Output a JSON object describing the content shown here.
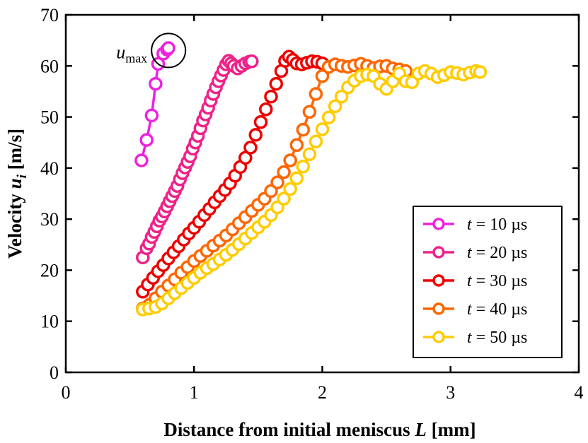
{
  "chart_data": {
    "type": "line",
    "xlabel_prefix": "Distance from initial meniscus ",
    "xlabel_var": "L",
    "xlabel_suffix": " [mm]",
    "ylabel_prefix": "Velocity ",
    "ylabel_var": "u",
    "ylabel_sub": "i",
    "ylabel_suffix": " [m/s]",
    "xlim": [
      0,
      4
    ],
    "ylim": [
      0,
      70
    ],
    "x_ticks": [
      0,
      1,
      2,
      3,
      4
    ],
    "y_ticks": [
      0,
      10,
      20,
      30,
      40,
      50,
      60,
      70
    ],
    "x_tick_labels": [
      "0",
      "1",
      "2",
      "3",
      "4"
    ],
    "y_tick_labels": [
      "0",
      "10",
      "20",
      "30",
      "40",
      "50",
      "60",
      "70"
    ],
    "legend_position": "bottom-right",
    "annotation": {
      "base": "u",
      "sub": "max",
      "x": 0.79,
      "y": 63.3
    },
    "series": [
      {
        "name_var": "t",
        "name_rest": " = 10 µs",
        "color": "#ee22dd",
        "x": [
          0.59,
          0.63,
          0.67,
          0.7,
          0.72,
          0.76,
          0.79,
          0.8
        ],
        "y": [
          41.5,
          45.5,
          50.3,
          56.5,
          60.4,
          62.4,
          63.2,
          63.5
        ]
      },
      {
        "name_var": "t",
        "name_rest": " = 20 µs",
        "color": "#ee2288",
        "x": [
          0.6,
          0.63,
          0.65,
          0.67,
          0.69,
          0.71,
          0.73,
          0.75,
          0.77,
          0.79,
          0.81,
          0.83,
          0.85,
          0.87,
          0.89,
          0.91,
          0.93,
          0.95,
          0.97,
          0.99,
          1.01,
          1.03,
          1.05,
          1.07,
          1.09,
          1.11,
          1.13,
          1.15,
          1.17,
          1.19,
          1.21,
          1.23,
          1.25,
          1.27,
          1.29,
          1.31,
          1.34,
          1.37,
          1.4,
          1.43,
          1.45
        ],
        "y": [
          22.5,
          24.3,
          25.2,
          26.5,
          27.5,
          28.6,
          29.7,
          30.5,
          31.5,
          32.5,
          33.5,
          34.5,
          35.5,
          36.5,
          37.8,
          39.0,
          40.1,
          41.2,
          42.3,
          43.8,
          45.0,
          46.3,
          47.8,
          49.3,
          50.5,
          51.8,
          53.2,
          54.5,
          55.8,
          57.0,
          58.1,
          59.2,
          60.3,
          61.0,
          60.5,
          60.0,
          59.5,
          60.0,
          60.5,
          60.8,
          60.9
        ]
      },
      {
        "name_var": "t",
        "name_rest": " = 30 µs",
        "color": "#ee0000",
        "x": [
          0.6,
          0.64,
          0.68,
          0.72,
          0.76,
          0.8,
          0.84,
          0.88,
          0.92,
          0.96,
          1.0,
          1.04,
          1.08,
          1.12,
          1.16,
          1.2,
          1.24,
          1.28,
          1.32,
          1.36,
          1.4,
          1.44,
          1.48,
          1.52,
          1.56,
          1.6,
          1.64,
          1.68,
          1.71,
          1.74,
          1.77,
          1.8,
          1.84,
          1.88,
          1.92,
          1.96,
          2.0
        ],
        "y": [
          15.8,
          17.2,
          18.5,
          19.8,
          21.0,
          22.3,
          23.5,
          24.7,
          26.0,
          27.2,
          28.3,
          29.5,
          30.8,
          32.0,
          33.3,
          34.5,
          35.7,
          37.0,
          38.5,
          40.2,
          42.0,
          44.0,
          46.5,
          49.0,
          51.5,
          54.0,
          56.5,
          59.0,
          61.0,
          61.8,
          61.2,
          60.5,
          60.3,
          60.6,
          60.9,
          60.8,
          60.5
        ]
      },
      {
        "name_var": "t",
        "name_rest": " = 40 µs",
        "color": "#ff6600",
        "x": [
          0.6,
          0.65,
          0.7,
          0.75,
          0.8,
          0.85,
          0.9,
          0.95,
          1.0,
          1.05,
          1.1,
          1.15,
          1.2,
          1.25,
          1.3,
          1.35,
          1.4,
          1.45,
          1.5,
          1.55,
          1.6,
          1.65,
          1.7,
          1.75,
          1.8,
          1.85,
          1.9,
          1.95,
          2.0,
          2.05,
          2.1,
          2.15,
          2.2,
          2.25,
          2.3,
          2.35,
          2.4,
          2.45,
          2.5,
          2.55,
          2.6,
          2.65
        ],
        "y": [
          12.5,
          13.2,
          14.5,
          15.8,
          17.0,
          18.2,
          19.5,
          20.6,
          21.8,
          22.8,
          23.8,
          24.8,
          25.8,
          26.8,
          28.0,
          29.2,
          30.4,
          31.6,
          32.8,
          34.0,
          35.5,
          37.2,
          39.2,
          41.5,
          44.5,
          47.5,
          51.0,
          54.5,
          58.0,
          59.8,
          60.3,
          60.0,
          59.8,
          60.1,
          60.4,
          60.0,
          59.6,
          59.9,
          60.0,
          59.5,
          59.3,
          59.0
        ]
      },
      {
        "name_var": "t",
        "name_rest": " = 50 µs",
        "color": "#ffcc00",
        "x": [
          0.6,
          0.65,
          0.7,
          0.75,
          0.8,
          0.85,
          0.9,
          0.95,
          1.0,
          1.05,
          1.1,
          1.15,
          1.2,
          1.25,
          1.3,
          1.35,
          1.4,
          1.45,
          1.5,
          1.55,
          1.6,
          1.65,
          1.7,
          1.75,
          1.8,
          1.85,
          1.9,
          1.95,
          2.0,
          2.05,
          2.1,
          2.15,
          2.2,
          2.25,
          2.3,
          2.35,
          2.4,
          2.45,
          2.5,
          2.55,
          2.6,
          2.65,
          2.7,
          2.75,
          2.8,
          2.85,
          2.9,
          2.95,
          3.0,
          3.05,
          3.1,
          3.15,
          3.2,
          3.23
        ],
        "y": [
          12.3,
          12.5,
          12.8,
          13.5,
          14.5,
          15.5,
          16.5,
          17.5,
          18.5,
          19.5,
          20.4,
          21.2,
          22.1,
          23.0,
          24.0,
          25.1,
          26.2,
          27.3,
          28.4,
          29.5,
          30.8,
          32.3,
          34.0,
          35.9,
          38.0,
          40.3,
          42.7,
          45.2,
          47.6,
          49.9,
          52.1,
          54.0,
          55.8,
          57.1,
          58.0,
          58.3,
          58.0,
          56.5,
          55.5,
          57.0,
          58.5,
          57.0,
          56.8,
          58.5,
          59.0,
          58.5,
          57.8,
          58.2,
          58.8,
          58.6,
          58.3,
          58.7,
          59.0,
          58.8
        ]
      }
    ]
  }
}
